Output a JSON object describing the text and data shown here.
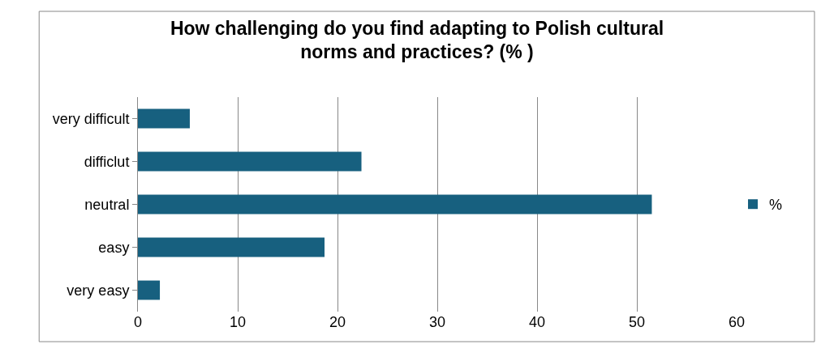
{
  "chart_data": {
    "type": "bar",
    "orientation": "horizontal",
    "title": "How challenging do you find adapting to Polish cultural\nnorms and practices? (% )",
    "categories": [
      "very difficult",
      "difficlut",
      "neutral",
      "easy",
      "very easy"
    ],
    "series": [
      {
        "name": "%",
        "color": "#17607f",
        "values": [
          5.2,
          22.4,
          51.5,
          18.7,
          2.2
        ]
      }
    ],
    "xlim": [
      0,
      60
    ],
    "xticks": [
      0,
      10,
      20,
      30,
      40,
      50,
      60
    ],
    "grid": "x",
    "legend": "right"
  }
}
